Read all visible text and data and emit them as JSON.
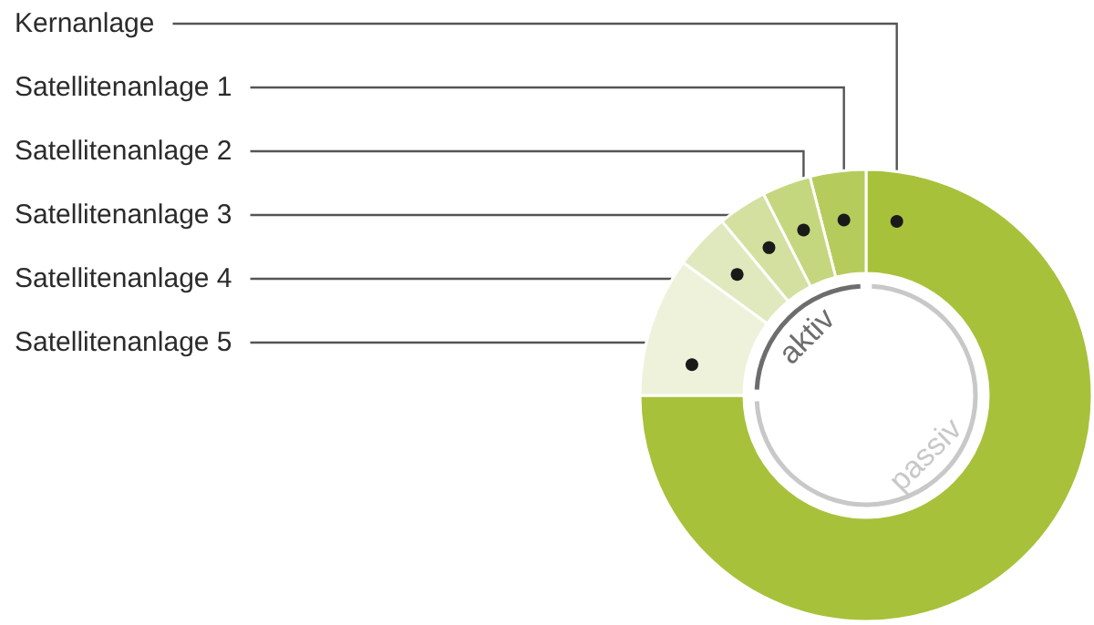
{
  "chart_data": {
    "type": "donut",
    "categories": [
      "Kernanlage",
      "Satellitenanlage 1",
      "Satellitenanlage 2",
      "Satellitenanlage 3",
      "Satellitenanlage 4",
      "Satellitenanlage 5"
    ],
    "values": [
      75,
      4,
      3.5,
      3.5,
      4,
      10
    ],
    "colors": [
      "#a7c13a",
      "#b5cc5c",
      "#c4d77e",
      "#d3e0a0",
      "#e0e9bd",
      "#eef2db"
    ],
    "annotations": [
      "aktiv",
      "passiv"
    ],
    "legend": false
  }
}
